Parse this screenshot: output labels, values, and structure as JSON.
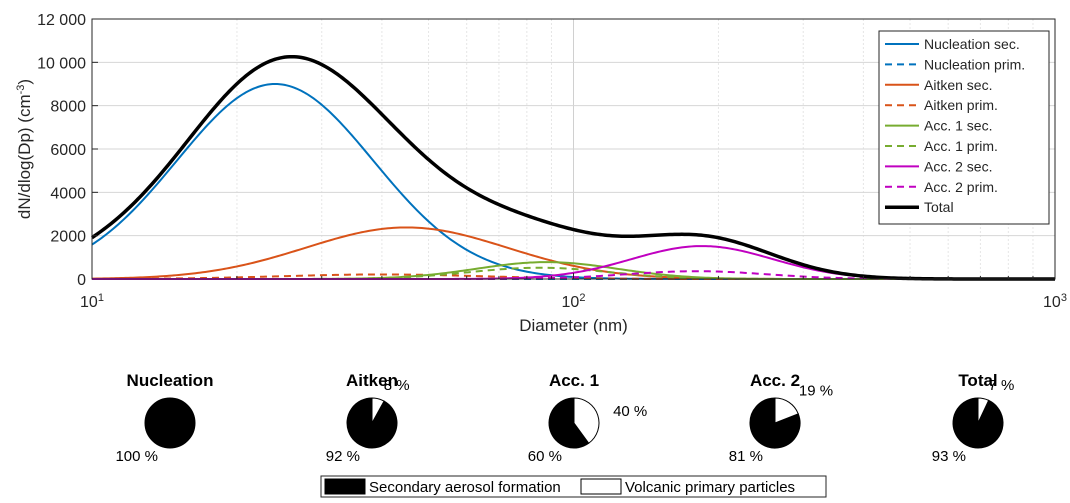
{
  "chart_data": [
    {
      "type": "line",
      "xlabel": "Diameter (nm)",
      "ylabel_main": "dN/dlog(Dp) (cm",
      "ylabel_sup": "-3",
      "ylabel_close": ")",
      "x_scale": "log",
      "xlim": [
        10,
        1000
      ],
      "ylim": [
        0,
        12000
      ],
      "grid": true,
      "legend_position": "top-right",
      "x_tick_base": "10",
      "x_ticks": [
        {
          "value": 10,
          "exp": "1"
        },
        {
          "value": 100,
          "exp": "2"
        },
        {
          "value": 1000,
          "exp": "3"
        }
      ],
      "y_ticks": [
        {
          "value": 0,
          "label": "0"
        },
        {
          "value": 2000,
          "label": "2000"
        },
        {
          "value": 4000,
          "label": "4000"
        },
        {
          "value": 6000,
          "label": "6000"
        },
        {
          "value": 8000,
          "label": "8000"
        },
        {
          "value": 10000,
          "label": "10 000"
        },
        {
          "value": 12000,
          "label": "12 000"
        }
      ],
      "modes": [
        {
          "key": "nucleation_sec",
          "name": "Nucleation sec.",
          "color": "#0072BD",
          "dashed": false,
          "width": 2,
          "peak": 9000,
          "dp": 24,
          "sigma": 1.6
        },
        {
          "key": "nucleation_prim",
          "name": "Nucleation prim.",
          "color": "#0072BD",
          "dashed": true,
          "width": 2,
          "peak": 0,
          "dp": 24,
          "sigma": 1.6
        },
        {
          "key": "aitken_sec",
          "name": "Aitken sec.",
          "color": "#D95319",
          "dashed": false,
          "width": 2,
          "peak": 2380,
          "dp": 45,
          "sigma": 1.62
        },
        {
          "key": "aitken_prim",
          "name": "Aitken prim.",
          "color": "#D95319",
          "dashed": true,
          "width": 2,
          "peak": 210,
          "dp": 40,
          "sigma": 1.62
        },
        {
          "key": "acc1_sec",
          "name": "Acc. 1 sec.",
          "color": "#77AC30",
          "dashed": false,
          "width": 2,
          "peak": 780,
          "dp": 88,
          "sigma": 1.4
        },
        {
          "key": "acc1_prim",
          "name": "Acc. 1 prim.",
          "color": "#77AC30",
          "dashed": true,
          "width": 2,
          "peak": 520,
          "dp": 85,
          "sigma": 1.4
        },
        {
          "key": "acc2_sec",
          "name": "Acc. 2 sec.",
          "color": "#C000C0",
          "dashed": false,
          "width": 2,
          "peak": 1520,
          "dp": 185,
          "sigma": 1.4
        },
        {
          "key": "acc2_prim",
          "name": "Acc. 2 prim.",
          "color": "#C000C0",
          "dashed": true,
          "width": 2,
          "peak": 360,
          "dp": 180,
          "sigma": 1.4
        }
      ],
      "total": {
        "key": "total",
        "name": "Total",
        "color": "#000000",
        "dashed": false,
        "width": 3.5,
        "baseline": 300
      }
    },
    {
      "type": "pie",
      "slice_colors": {
        "secondary": "#000000",
        "primary": "#ffffff"
      },
      "pies": [
        {
          "title": "Nucleation",
          "secondary": 100,
          "primary": 0,
          "secondary_label": "100 %",
          "primary_label": ""
        },
        {
          "title": "Aitken",
          "secondary": 92,
          "primary": 8,
          "secondary_label": "92 %",
          "primary_label": "8 %"
        },
        {
          "title": "Acc. 1",
          "secondary": 60,
          "primary": 40,
          "secondary_label": "60 %",
          "primary_label": "40 %"
        },
        {
          "title": "Acc. 2",
          "secondary": 81,
          "primary": 19,
          "secondary_label": "81 %",
          "primary_label": "19 %"
        },
        {
          "title": "Total",
          "secondary": 93,
          "primary": 7,
          "secondary_label": "93 %",
          "primary_label": "7 %"
        }
      ],
      "legend": [
        {
          "key": "secondary",
          "label": "Secondary aerosol formation",
          "color": "#000000"
        },
        {
          "key": "primary",
          "label": "Volcanic primary particles",
          "color": "#ffffff"
        }
      ]
    }
  ]
}
